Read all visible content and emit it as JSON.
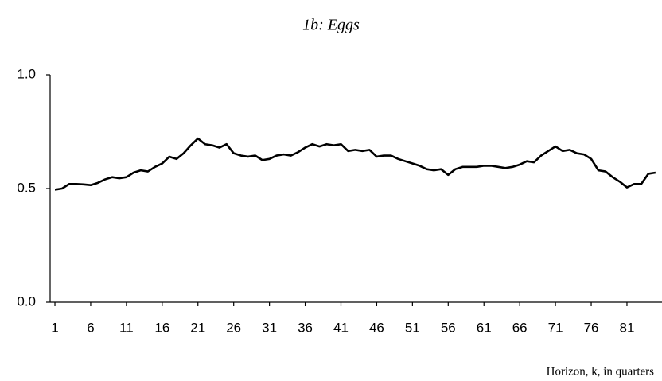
{
  "chart_data": {
    "type": "line",
    "title": "1b: Eggs",
    "x_label": "Horizon, k, in quarters",
    "x": [
      1,
      2,
      3,
      4,
      5,
      6,
      7,
      8,
      9,
      10,
      11,
      12,
      13,
      14,
      15,
      16,
      17,
      18,
      19,
      20,
      21,
      22,
      23,
      24,
      25,
      26,
      27,
      28,
      29,
      30,
      31,
      32,
      33,
      34,
      35,
      36,
      37,
      38,
      39,
      40,
      41,
      42,
      43,
      44,
      45,
      46,
      47,
      48,
      49,
      50,
      51,
      52,
      53,
      54,
      55,
      56,
      57,
      58,
      59,
      60,
      61,
      62,
      63,
      64,
      65,
      66,
      67,
      68,
      69,
      70,
      71,
      72,
      73,
      74,
      75,
      76,
      77,
      78,
      79,
      80,
      81,
      82,
      83,
      84,
      85
    ],
    "series": [
      {
        "name": "Eggs",
        "color": "#000000",
        "values": [
          0.495,
          0.5,
          0.52,
          0.52,
          0.518,
          0.515,
          0.525,
          0.54,
          0.55,
          0.545,
          0.55,
          0.57,
          0.58,
          0.575,
          0.595,
          0.61,
          0.64,
          0.63,
          0.655,
          0.69,
          0.72,
          0.695,
          0.69,
          0.68,
          0.695,
          0.655,
          0.645,
          0.64,
          0.645,
          0.625,
          0.63,
          0.645,
          0.65,
          0.645,
          0.66,
          0.68,
          0.695,
          0.685,
          0.695,
          0.69,
          0.695,
          0.665,
          0.67,
          0.665,
          0.67,
          0.64,
          0.645,
          0.645,
          0.63,
          0.62,
          0.61,
          0.6,
          0.585,
          0.58,
          0.585,
          0.56,
          0.585,
          0.595,
          0.595,
          0.595,
          0.6,
          0.6,
          0.595,
          0.59,
          0.595,
          0.605,
          0.62,
          0.615,
          0.645,
          0.665,
          0.685,
          0.665,
          0.67,
          0.655,
          0.65,
          0.63,
          0.58,
          0.575,
          0.55,
          0.53,
          0.505,
          0.52,
          0.52,
          0.565,
          0.57
        ]
      }
    ],
    "xlim": [
      0.33,
      85.9
    ],
    "xticks": [
      1,
      6,
      11,
      16,
      21,
      26,
      31,
      36,
      41,
      46,
      51,
      56,
      61,
      66,
      71,
      76,
      81
    ],
    "ylim": [
      0,
      1
    ],
    "yticks": [
      {
        "value": 0,
        "label": "0.0"
      },
      {
        "value": 0.5,
        "label": "0.5"
      },
      {
        "value": 1,
        "label": "1.0"
      }
    ]
  }
}
